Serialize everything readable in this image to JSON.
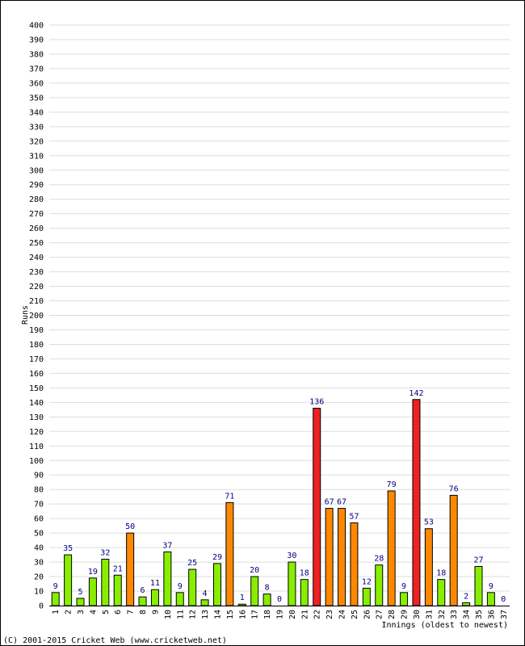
{
  "chart_data": {
    "type": "bar",
    "xlabel": "Innings (oldest to newest)",
    "ylabel": "Runs",
    "ylim": [
      0,
      400
    ],
    "ytick_step": 10,
    "grid": true,
    "categories": [
      "1",
      "2",
      "3",
      "4",
      "5",
      "6",
      "7",
      "8",
      "9",
      "10",
      "11",
      "12",
      "13",
      "14",
      "15",
      "16",
      "17",
      "18",
      "19",
      "20",
      "21",
      "22",
      "23",
      "24",
      "25",
      "26",
      "27",
      "28",
      "29",
      "30",
      "31",
      "32",
      "33",
      "34",
      "35",
      "36",
      "37"
    ],
    "values": [
      9,
      35,
      5,
      19,
      32,
      21,
      50,
      6,
      11,
      37,
      9,
      25,
      4,
      29,
      71,
      1,
      20,
      8,
      0,
      30,
      18,
      136,
      67,
      67,
      57,
      12,
      28,
      79,
      9,
      142,
      53,
      18,
      76,
      2,
      27,
      9,
      0
    ],
    "colors": {
      "under_50": "#88ee00",
      "fifty_plus": "#ff8800",
      "hundred_plus": "#ee2222",
      "gridline": "#dddddd",
      "data_label": "#000080"
    }
  },
  "footer": {
    "copyright": "(C) 2001-2015 Cricket Web (www.cricketweb.net)"
  }
}
